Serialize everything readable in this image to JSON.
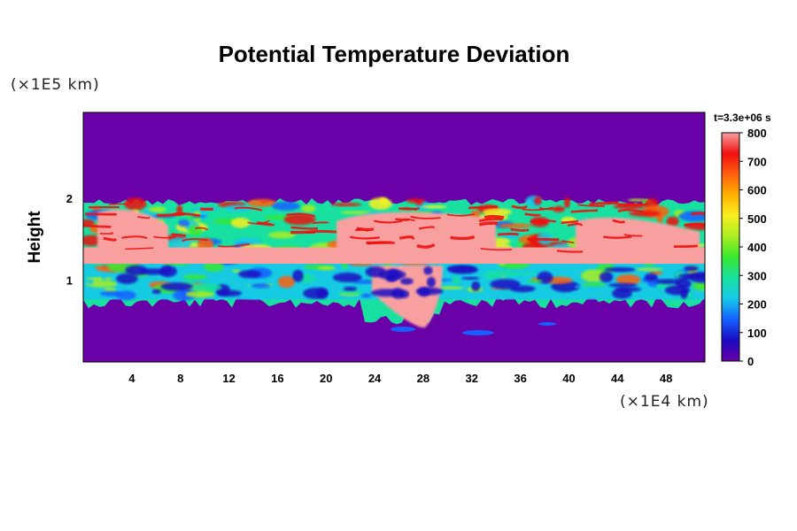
{
  "chart_data": {
    "type": "heatmap",
    "title": "Potential Temperature Deviation",
    "ylabel": "Height",
    "y_scale_label": "(×1E5 km)",
    "x_scale_label": "(×1E4 km)",
    "time_label": "t=3.3e+06 s",
    "x_ticks": [
      "4",
      "8",
      "12",
      "16",
      "20",
      "24",
      "28",
      "32",
      "36",
      "40",
      "44",
      "48"
    ],
    "x_tick_values": [
      4,
      8,
      12,
      16,
      20,
      24,
      28,
      32,
      36,
      40,
      44,
      48
    ],
    "xlim": [
      0,
      51.2
    ],
    "y_ticks": [
      "1",
      "2"
    ],
    "y_tick_values": [
      1,
      2
    ],
    "ylim": [
      0,
      3.05
    ],
    "colorbar": {
      "ticks": [
        "0",
        "100",
        "200",
        "300",
        "400",
        "500",
        "600",
        "700",
        "800"
      ],
      "tick_values": [
        0,
        100,
        200,
        300,
        400,
        500,
        600,
        700,
        800
      ],
      "range": [
        0,
        800
      ],
      "colors": [
        "#6a00a8",
        "#1a0bc2",
        "#1560ff",
        "#16c8e8",
        "#18e0a0",
        "#38e830",
        "#a8ee20",
        "#f8f020",
        "#ffb000",
        "#ff6010",
        "#f01010",
        "#f8a0a0"
      ]
    },
    "bands": {
      "turbulent_lower_y": 0.72,
      "turbulent_upper_y": 1.98,
      "hot_core_y": [
        1.2,
        1.4
      ]
    }
  }
}
